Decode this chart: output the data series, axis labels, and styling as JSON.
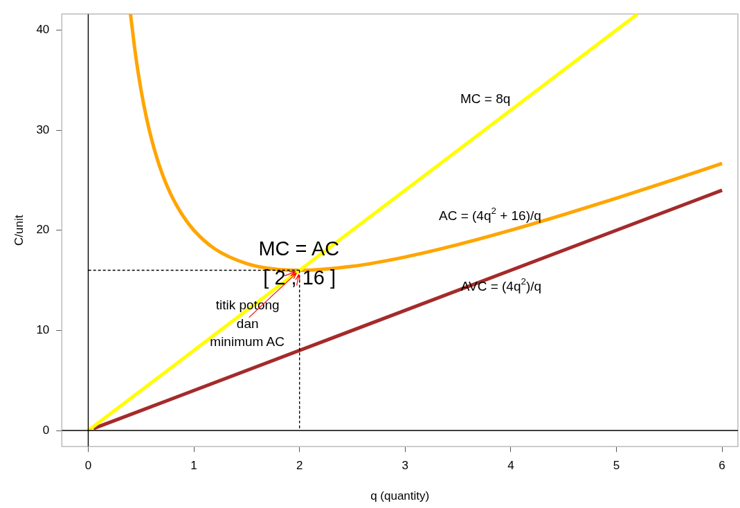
{
  "chart_data": {
    "type": "line",
    "xlabel": "q (quantity)",
    "ylabel": "C/unit",
    "xlim": [
      -0.25,
      6.15
    ],
    "ylim": [
      -1.6,
      41.6
    ],
    "xticks": [
      0,
      1,
      2,
      3,
      4,
      5,
      6
    ],
    "yticks": [
      0,
      10,
      20,
      30,
      40
    ],
    "grid": false,
    "legend": false,
    "marker": "none",
    "series": [
      {
        "color": "#ffff00",
        "x": [
          0,
          5.2
        ],
        "values": [
          0,
          41.6
        ]
      },
      {
        "color": "#ffa500",
        "x": [
          0.4,
          0.45,
          0.5,
          0.55,
          0.6,
          0.65,
          0.7,
          0.75,
          0.8,
          0.9,
          1,
          1.2,
          1.5,
          1.75,
          2,
          2.5,
          3,
          3.5,
          4,
          4.5,
          5,
          5.5,
          6
        ],
        "values": [
          41.6,
          37.36,
          34,
          31.29,
          29.07,
          27.22,
          25.66,
          24.33,
          23.2,
          21.38,
          20,
          18.13,
          16.67,
          16.14,
          16,
          16.4,
          17.33,
          18.57,
          20,
          21.56,
          23.2,
          24.91,
          26.67
        ]
      },
      {
        "color": "#a52a2a",
        "x": [
          0.05,
          6
        ],
        "values": [
          0.2,
          24
        ]
      },
      {
        "color": "#000000",
        "line_style": "dashed",
        "x": [
          2,
          0
        ],
        "values": [
          16,
          16
        ]
      },
      {
        "color": "#000000",
        "line_style": "dashed",
        "x": [
          2,
          2
        ],
        "values": [
          16,
          0
        ]
      },
      {
        "color": "#000000",
        "line_style": "solid",
        "x": [
          0,
          0
        ],
        "values": [
          -1.6,
          41.6
        ]
      },
      {
        "color": "#000000",
        "line_style": "solid",
        "x": [
          -0.25,
          6.15
        ],
        "values": [
          0,
          0
        ]
      }
    ],
    "annotations": [
      {
        "text": "MC = 8q",
        "x": 4.1,
        "y": 32.8
      },
      {
        "text": "AC = (4q$^{2}$ + 16)/q",
        "x": 4.0,
        "y": 20
      },
      {
        "text": "AVC = (4q$^{2}$)/q",
        "x": 4.0,
        "y": 16
      },
      {
        "text": "MC = AC",
        "x": 2,
        "y": 16
      },
      {
        "text": "[ 2 , 16 ]",
        "x": 2,
        "y": 16
      },
      {
        "text": "titik potong\ndan\nminimum AC",
        "x": 2,
        "y": 16
      }
    ]
  }
}
